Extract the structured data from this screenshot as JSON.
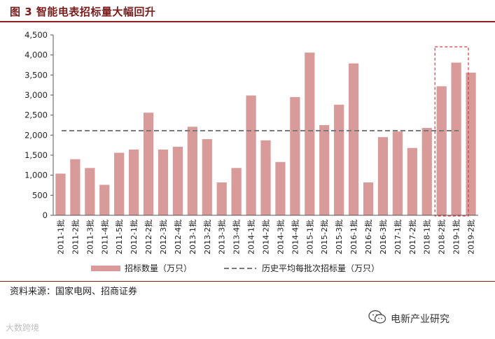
{
  "header": {
    "title": "图 3 智能电表招标量大幅回升"
  },
  "footer": {
    "source": "资料来源：国家电网、招商证券",
    "watermark_right": "电新产业研究",
    "watermark_left": "大数跨境"
  },
  "colors": {
    "bar": "#d99a9a",
    "avg_line": "#7a7a7a",
    "highlight": "#d63a3a",
    "rule": "#8b1e1e"
  },
  "chart_data": {
    "type": "bar",
    "categories": [
      "2011-1批",
      "2011-2批",
      "2011-3批",
      "2011-4批",
      "2011-5批",
      "2012-1批",
      "2012-2批",
      "2012-3批",
      "2012-4批",
      "2013-1批",
      "2013-2批",
      "2013-3批",
      "2013-4批",
      "2014-1批",
      "2014-2批",
      "2014-3批",
      "2014-4批",
      "2015-1批",
      "2015-2批",
      "2015-3批",
      "2016-1批",
      "2016-2批",
      "2016-3批",
      "2017-1批",
      "2017-2批",
      "2018-1批",
      "2018-2批",
      "2019-1批",
      "2019-2批"
    ],
    "series": [
      {
        "name": "招标数量（万只）",
        "values": [
          1040,
          1400,
          1180,
          760,
          1560,
          1640,
          2560,
          1640,
          1710,
          2210,
          1900,
          820,
          1180,
          2990,
          1870,
          1330,
          2950,
          4060,
          2250,
          2760,
          3790,
          820,
          1950,
          2090,
          1680,
          2180,
          3220,
          3810,
          3560
        ]
      }
    ],
    "reference_line": {
      "name": "历史平均每批次招标量（万只）",
      "value": 2110
    },
    "ylim": [
      0,
      4500
    ],
    "yticks": [
      "0",
      "500",
      "1,000",
      "1,500",
      "2,000",
      "2,500",
      "3,000",
      "3,500",
      "4,000",
      "4,500"
    ],
    "highlight_range": [
      "2018-2批",
      "2019-2批"
    ],
    "grid": false,
    "legend_position": "bottom"
  }
}
